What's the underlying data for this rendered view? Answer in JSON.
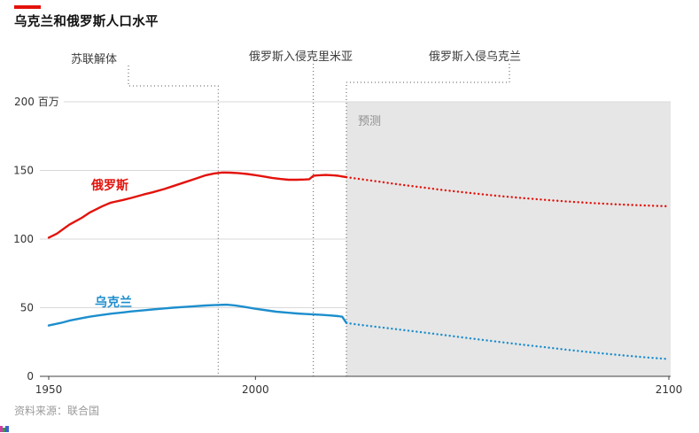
{
  "page": {
    "title": "乌克兰和俄罗斯人口水平",
    "source": "资料来源：联合国",
    "accent_color": "#e3120b",
    "background": "#ffffff"
  },
  "annotations": [
    {
      "label": "苏联解体",
      "year": 1991
    },
    {
      "label": "俄罗斯入侵克里米亚",
      "year": 2014
    },
    {
      "label": "俄罗斯入侵乌克兰",
      "year": 2022
    }
  ],
  "chart_data": {
    "type": "line",
    "title": "乌克兰和俄罗斯人口水平",
    "unit_label": "百万",
    "forecast_label": "预测",
    "forecast_start_year": 2022,
    "x_range": [
      1950,
      2100
    ],
    "y_range": [
      0,
      200
    ],
    "x_ticks": [
      1950,
      2000,
      2100
    ],
    "y_ticks": [
      0,
      50,
      100,
      150,
      200
    ],
    "grid": true,
    "legend_position": "inline-labels",
    "colors": {
      "grid": "#d9d9d9",
      "axis": "#404040",
      "tick_text": "#333333",
      "event_line": "#555555",
      "forecast_fill": "#e6e6e6"
    },
    "series": [
      {
        "name": "俄罗斯",
        "color": "#e3120b",
        "history": [
          [
            1950,
            101
          ],
          [
            1952,
            104
          ],
          [
            1955,
            110.5
          ],
          [
            1958,
            115.5
          ],
          [
            1960,
            119.5
          ],
          [
            1963,
            124
          ],
          [
            1965,
            126.5
          ],
          [
            1968,
            128.5
          ],
          [
            1970,
            130
          ],
          [
            1973,
            132.5
          ],
          [
            1975,
            134
          ],
          [
            1978,
            136.5
          ],
          [
            1980,
            138.5
          ],
          [
            1983,
            141.5
          ],
          [
            1985,
            143.5
          ],
          [
            1988,
            146.5
          ],
          [
            1990,
            147.8
          ],
          [
            1992,
            148.5
          ],
          [
            1994,
            148.4
          ],
          [
            1996,
            148
          ],
          [
            1998,
            147.4
          ],
          [
            2000,
            146.6
          ],
          [
            2002,
            145.6
          ],
          [
            2004,
            144.6
          ],
          [
            2006,
            143.8
          ],
          [
            2008,
            143.2
          ],
          [
            2010,
            143.2
          ],
          [
            2012,
            143.4
          ],
          [
            2013,
            143.6
          ],
          [
            2014,
            146.1
          ],
          [
            2015,
            146.4
          ],
          [
            2016,
            146.6
          ],
          [
            2017,
            146.7
          ],
          [
            2018,
            146.6
          ],
          [
            2019,
            146.4
          ],
          [
            2020,
            146.1
          ],
          [
            2021,
            145.6
          ],
          [
            2022,
            145.1
          ]
        ],
        "forecast": [
          [
            2022,
            145.1
          ],
          [
            2025,
            143.9
          ],
          [
            2030,
            141.8
          ],
          [
            2035,
            139.7
          ],
          [
            2040,
            137.8
          ],
          [
            2045,
            135.9
          ],
          [
            2050,
            134.2
          ],
          [
            2055,
            132.6
          ],
          [
            2060,
            131.1
          ],
          [
            2065,
            129.8
          ],
          [
            2070,
            128.6
          ],
          [
            2075,
            127.5
          ],
          [
            2080,
            126.5
          ],
          [
            2085,
            125.7
          ],
          [
            2090,
            125
          ],
          [
            2095,
            124.4
          ],
          [
            2100,
            123.9
          ]
        ]
      },
      {
        "name": "乌克兰",
        "color": "#1d8ecd",
        "history": [
          [
            1950,
            37
          ],
          [
            1953,
            39
          ],
          [
            1955,
            40.6
          ],
          [
            1958,
            42.4
          ],
          [
            1960,
            43.5
          ],
          [
            1963,
            44.8
          ],
          [
            1965,
            45.6
          ],
          [
            1968,
            46.6
          ],
          [
            1970,
            47.3
          ],
          [
            1973,
            48.1
          ],
          [
            1975,
            48.7
          ],
          [
            1978,
            49.5
          ],
          [
            1980,
            50
          ],
          [
            1983,
            50.6
          ],
          [
            1985,
            51
          ],
          [
            1988,
            51.6
          ],
          [
            1990,
            51.9
          ],
          [
            1993,
            52.2
          ],
          [
            1995,
            51.7
          ],
          [
            1997,
            50.8
          ],
          [
            2000,
            49.2
          ],
          [
            2002,
            48.4
          ],
          [
            2005,
            47.1
          ],
          [
            2008,
            46.3
          ],
          [
            2010,
            45.8
          ],
          [
            2012,
            45.4
          ],
          [
            2014,
            45.1
          ],
          [
            2016,
            44.8
          ],
          [
            2018,
            44.4
          ],
          [
            2020,
            43.9
          ],
          [
            2021,
            43.4
          ],
          [
            2022,
            38.9
          ]
        ],
        "forecast": [
          [
            2022,
            38.9
          ],
          [
            2025,
            37.6
          ],
          [
            2030,
            35.8
          ],
          [
            2035,
            34
          ],
          [
            2040,
            32.2
          ],
          [
            2045,
            30.3
          ],
          [
            2050,
            28.4
          ],
          [
            2055,
            26.5
          ],
          [
            2060,
            24.7
          ],
          [
            2065,
            22.9
          ],
          [
            2070,
            21.2
          ],
          [
            2075,
            19.5
          ],
          [
            2080,
            17.9
          ],
          [
            2085,
            16.4
          ],
          [
            2090,
            15
          ],
          [
            2095,
            13.7
          ],
          [
            2100,
            12.6
          ]
        ]
      }
    ]
  }
}
